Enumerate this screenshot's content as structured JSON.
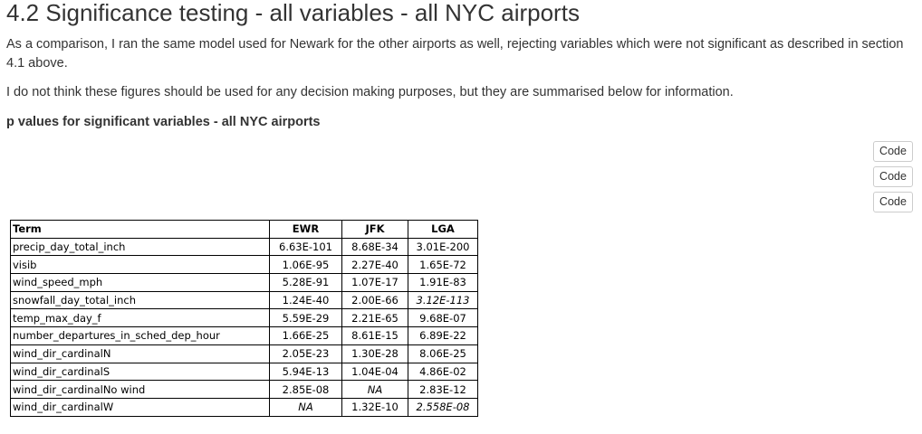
{
  "heading": "4.2 Significance testing - all variables - all NYC airports",
  "paragraphs": {
    "p1": "As a comparison, I ran the same model used for Newark for the other airports as well, rejecting variables which were not significant as described in section 4.1 above.",
    "p2": "I do not think these figures should be used for any decision making purposes, but they are summarised below for information."
  },
  "subheading": "p values for significant variables - all NYC airports",
  "code_buttons": [
    "Code",
    "Code",
    "Code"
  ],
  "table": {
    "headers": [
      "Term",
      "EWR",
      "JFK",
      "LGA"
    ],
    "rows": [
      {
        "term": "precip_day_total_inch",
        "ewr": "6.63E-101",
        "jfk": "8.68E-34",
        "lga": "3.01E-200"
      },
      {
        "term": "visib",
        "ewr": "1.06E-95",
        "jfk": "2.27E-40",
        "lga": "1.65E-72"
      },
      {
        "term": "wind_speed_mph",
        "ewr": "5.28E-91",
        "jfk": "1.07E-17",
        "lga": "1.91E-83"
      },
      {
        "term": "snowfall_day_total_inch",
        "ewr": "1.24E-40",
        "jfk": "2.00E-66",
        "lga": "3.12E-113"
      },
      {
        "term": "temp_max_day_f",
        "ewr": "5.59E-29",
        "jfk": "2.21E-65",
        "lga": "9.68E-07"
      },
      {
        "term": "number_departures_in_sched_dep_hour",
        "ewr": "1.66E-25",
        "jfk": "8.61E-15",
        "lga": "6.89E-22"
      },
      {
        "term": "wind_dir_cardinalN",
        "ewr": "2.05E-23",
        "jfk": "1.30E-28",
        "lga": "8.06E-25"
      },
      {
        "term": "wind_dir_cardinalS",
        "ewr": "5.94E-13",
        "jfk": "1.04E-04",
        "lga": "4.86E-02"
      },
      {
        "term": "wind_dir_cardinalNo wind",
        "ewr": "2.85E-08",
        "jfk": "NA",
        "lga": "2.83E-12"
      },
      {
        "term": "wind_dir_cardinalW",
        "ewr": "NA",
        "jfk": "1.32E-10",
        "lga": "2.558E-08"
      }
    ],
    "italic_cells": [
      {
        "row": 3,
        "col": "lga"
      },
      {
        "row": 8,
        "col": "jfk"
      },
      {
        "row": 9,
        "col": "ewr"
      },
      {
        "row": 9,
        "col": "lga"
      }
    ]
  }
}
